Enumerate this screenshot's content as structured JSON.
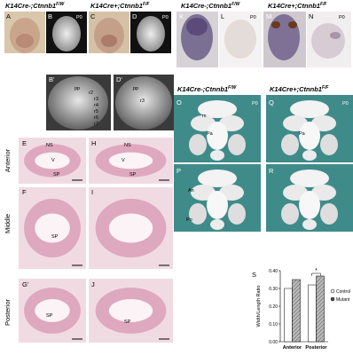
{
  "figure": {
    "headers": [
      {
        "base": "K14Cre-;Ctnnb1",
        "sup": "F/W"
      },
      {
        "base": "K14Cre+;Ctnnb1",
        "sup": "F/F"
      },
      {
        "base": "K14Cre-;Ctnnb1",
        "sup": "F/W"
      },
      {
        "base": "K14Cre+;Ctnnb1",
        "sup": "F/F"
      },
      {
        "base": "K14Cre-;Ctnnb1",
        "sup": "F/W"
      },
      {
        "base": "K14Cre+;Ctnnb1",
        "sup": "F/F"
      }
    ],
    "panel_labels": [
      "A",
      "B",
      "C",
      "D",
      "B'",
      "D'",
      "K",
      "L",
      "M",
      "N",
      "O",
      "Q",
      "P",
      "R",
      "E",
      "H",
      "F",
      "I",
      "G'",
      "J",
      "S"
    ],
    "stage_labels": [
      "P0",
      "P0",
      "P0",
      "P0",
      "P0",
      "P0"
    ],
    "bprime_labels": [
      "pp",
      "r2",
      "r3",
      "r4",
      "r5",
      "r6",
      "r7"
    ],
    "dprime_labels": [
      "pp",
      "r3"
    ],
    "skull_labels": [
      "m",
      "Pa",
      "Pa",
      "An",
      "Po"
    ],
    "histology_labels": [
      "NS",
      "V",
      "SP",
      "NS",
      "V",
      "SP",
      "SP",
      "SP",
      "SP"
    ],
    "row_labels": [
      "Anterior",
      "Middle",
      "Posterior"
    ]
  },
  "chart_data": {
    "type": "bar",
    "y_label": "Width/Length Ratio",
    "categories": [
      "Anterior",
      "Posterior"
    ],
    "series": [
      {
        "name": "Control",
        "color": "#ffffff",
        "values": [
          0.3,
          0.32
        ]
      },
      {
        "name": "Mutant",
        "color": "#9a9a9a",
        "values": [
          0.35,
          0.37
        ]
      }
    ],
    "ylim": [
      0,
      0.4
    ],
    "yticks": [
      {
        "value": 0,
        "label": "0.00"
      },
      {
        "value": 0.1,
        "label": "0.10"
      },
      {
        "value": 0.2,
        "label": "0.20"
      },
      {
        "value": 0.3,
        "label": "0.30"
      },
      {
        "value": 0.4,
        "label": "0.40"
      }
    ],
    "annotation": "*"
  }
}
